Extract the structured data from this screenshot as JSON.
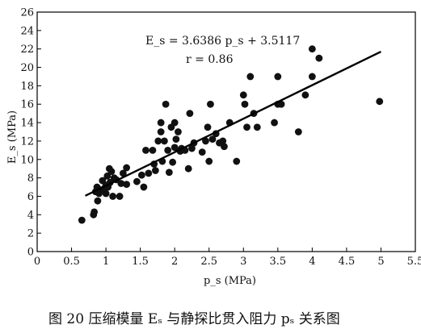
{
  "chart_data": {
    "type": "scatter",
    "xlabel": "p_s (MPa)",
    "ylabel": "E_s (MPa)",
    "xlim": [
      0,
      5.5
    ],
    "ylim": [
      0,
      26
    ],
    "x_ticks": [
      "0",
      "0.5",
      "1",
      "1.5",
      "2",
      "2.5",
      "3",
      "3.5",
      "4",
      "4.5",
      "5",
      "5.5"
    ],
    "y_ticks": [
      "0",
      "2",
      "4",
      "6",
      "8",
      "10",
      "12",
      "14",
      "16",
      "18",
      "20",
      "22",
      "24",
      "26"
    ],
    "grid": false,
    "annotations": [
      "E_s = 3.6386 p_s + 3.5117",
      "r = 0.86"
    ],
    "fit_line": {
      "slope": 3.6386,
      "intercept": 3.5117,
      "x_range": [
        0.7,
        5.0
      ]
    },
    "points": [
      [
        0.65,
        3.4
      ],
      [
        0.82,
        4.0
      ],
      [
        0.83,
        4.3
      ],
      [
        0.85,
        6.5
      ],
      [
        0.87,
        7.0
      ],
      [
        0.88,
        5.5
      ],
      [
        0.9,
        6.3
      ],
      [
        0.92,
        6.7
      ],
      [
        0.95,
        7.7
      ],
      [
        0.97,
        6.8
      ],
      [
        1.0,
        6.3
      ],
      [
        1.0,
        7.2
      ],
      [
        1.02,
        8.2
      ],
      [
        1.03,
        7.0
      ],
      [
        1.05,
        9.0
      ],
      [
        1.06,
        7.5
      ],
      [
        1.08,
        8.7
      ],
      [
        1.1,
        6.0
      ],
      [
        1.12,
        8.0
      ],
      [
        1.15,
        7.8
      ],
      [
        1.2,
        6.0
      ],
      [
        1.22,
        7.4
      ],
      [
        1.25,
        8.5
      ],
      [
        1.3,
        9.1
      ],
      [
        1.3,
        7.3
      ],
      [
        1.45,
        7.6
      ],
      [
        1.52,
        8.3
      ],
      [
        1.55,
        7.0
      ],
      [
        1.58,
        11.0
      ],
      [
        1.62,
        8.5
      ],
      [
        1.68,
        11.0
      ],
      [
        1.7,
        9.5
      ],
      [
        1.72,
        8.8
      ],
      [
        1.76,
        12.0
      ],
      [
        1.8,
        14.0
      ],
      [
        1.8,
        13.0
      ],
      [
        1.82,
        9.8
      ],
      [
        1.85,
        12.0
      ],
      [
        1.87,
        16.0
      ],
      [
        1.9,
        11.0
      ],
      [
        1.92,
        8.6
      ],
      [
        1.95,
        13.5
      ],
      [
        1.97,
        9.7
      ],
      [
        2.0,
        14.0
      ],
      [
        2.0,
        11.3
      ],
      [
        2.02,
        12.2
      ],
      [
        2.05,
        13.0
      ],
      [
        2.08,
        10.9
      ],
      [
        2.1,
        11.2
      ],
      [
        2.15,
        11.0
      ],
      [
        2.2,
        9.0
      ],
      [
        2.22,
        15.0
      ],
      [
        2.25,
        11.2
      ],
      [
        2.28,
        11.8
      ],
      [
        2.4,
        10.8
      ],
      [
        2.45,
        12.0
      ],
      [
        2.48,
        13.5
      ],
      [
        2.5,
        9.8
      ],
      [
        2.52,
        16.0
      ],
      [
        2.55,
        12.2
      ],
      [
        2.6,
        12.8
      ],
      [
        2.65,
        11.8
      ],
      [
        2.7,
        12.0
      ],
      [
        2.72,
        11.4
      ],
      [
        2.8,
        14.0
      ],
      [
        2.9,
        9.8
      ],
      [
        3.0,
        17.0
      ],
      [
        3.02,
        16.0
      ],
      [
        3.05,
        13.5
      ],
      [
        3.1,
        19.0
      ],
      [
        3.15,
        15.0
      ],
      [
        3.2,
        13.5
      ],
      [
        3.45,
        14.0
      ],
      [
        3.5,
        16.0
      ],
      [
        3.5,
        19.0
      ],
      [
        3.55,
        16.0
      ],
      [
        3.8,
        13.0
      ],
      [
        3.9,
        17.0
      ],
      [
        4.0,
        22.0
      ],
      [
        4.0,
        19.0
      ],
      [
        4.1,
        21.0
      ],
      [
        4.98,
        16.3
      ]
    ]
  },
  "caption": "图 20    压缩模量 Eₛ 与静探比贯入阻力 pₛ 关系图"
}
